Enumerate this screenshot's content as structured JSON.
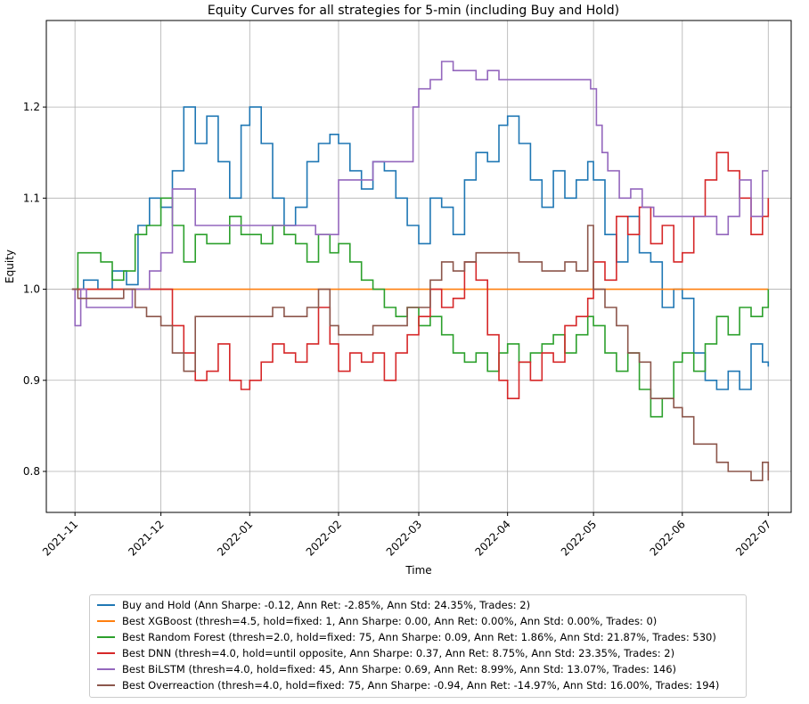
{
  "chart_data": {
    "type": "line",
    "title": "Equity Curves for all strategies for 5-min (including Buy and Hold)",
    "xlabel": "Time",
    "ylabel": "Equity",
    "ylim": [
      0.755,
      1.295
    ],
    "xlim_days": [
      -10,
      250
    ],
    "grid": true,
    "x_ticks": [
      {
        "label": "2021-11",
        "day": 0
      },
      {
        "label": "2021-12",
        "day": 30
      },
      {
        "label": "2022-01",
        "day": 61
      },
      {
        "label": "2022-02",
        "day": 92
      },
      {
        "label": "2022-03",
        "day": 120
      },
      {
        "label": "2022-04",
        "day": 151
      },
      {
        "label": "2022-05",
        "day": 181
      },
      {
        "label": "2022-06",
        "day": 212
      },
      {
        "label": "2022-07",
        "day": 242
      }
    ],
    "y_ticks": [
      0.8,
      0.9,
      1.0,
      1.1,
      1.2
    ],
    "series": [
      {
        "name": "Buy and Hold (Ann Sharpe: -0.12, Ann Ret: -2.85%, Ann Std: 24.35%, Trades: 2)",
        "color": "#1f77b4",
        "x": [
          -1,
          3,
          8,
          13,
          18,
          22,
          26,
          30,
          34,
          38,
          42,
          46,
          50,
          54,
          58,
          61,
          65,
          69,
          73,
          77,
          81,
          85,
          89,
          92,
          96,
          100,
          104,
          108,
          112,
          116,
          120,
          124,
          128,
          132,
          136,
          140,
          144,
          148,
          151,
          155,
          159,
          163,
          167,
          171,
          175,
          179,
          181,
          185,
          189,
          193,
          197,
          201,
          205,
          209,
          212,
          216,
          220,
          224,
          228,
          232,
          236,
          240,
          242
        ],
        "values": [
          1.0,
          1.01,
          1.0,
          1.02,
          1.005,
          1.07,
          1.1,
          1.09,
          1.13,
          1.2,
          1.16,
          1.19,
          1.14,
          1.1,
          1.18,
          1.2,
          1.16,
          1.1,
          1.07,
          1.09,
          1.14,
          1.16,
          1.17,
          1.16,
          1.13,
          1.11,
          1.14,
          1.13,
          1.1,
          1.07,
          1.05,
          1.1,
          1.09,
          1.06,
          1.12,
          1.15,
          1.14,
          1.18,
          1.19,
          1.16,
          1.12,
          1.09,
          1.13,
          1.1,
          1.12,
          1.14,
          1.12,
          1.06,
          1.03,
          1.08,
          1.04,
          1.03,
          0.98,
          1.0,
          0.99,
          0.93,
          0.9,
          0.89,
          0.91,
          0.89,
          0.94,
          0.92,
          0.915
        ]
      },
      {
        "name": "Best XGBoost (thresh=4.5, hold=fixed: 1, Ann Sharpe: 0.00, Ann Ret: 0.00%, Ann Std: 0.00%, Trades: 0)",
        "color": "#ff7f0e",
        "x": [
          -1,
          242
        ],
        "values": [
          1.0,
          1.0
        ]
      },
      {
        "name": "Best Random Forest (thresh=2.0, hold=fixed: 75, Ann Sharpe: 0.09, Ann Ret: 1.86%, Ann Std: 21.87%, Trades: 530)",
        "color": "#2ca02c",
        "x": [
          -1,
          1,
          5,
          9,
          13,
          17,
          21,
          25,
          30,
          34,
          38,
          42,
          46,
          50,
          54,
          58,
          61,
          65,
          69,
          73,
          77,
          81,
          85,
          89,
          92,
          96,
          100,
          104,
          108,
          112,
          116,
          120,
          124,
          128,
          132,
          136,
          140,
          144,
          148,
          151,
          155,
          159,
          163,
          167,
          171,
          175,
          179,
          181,
          185,
          189,
          193,
          197,
          201,
          205,
          209,
          212,
          216,
          220,
          224,
          228,
          232,
          236,
          240,
          242
        ],
        "values": [
          1.0,
          1.04,
          1.04,
          1.03,
          1.01,
          1.02,
          1.06,
          1.07,
          1.1,
          1.07,
          1.03,
          1.06,
          1.05,
          1.05,
          1.08,
          1.06,
          1.06,
          1.05,
          1.07,
          1.06,
          1.05,
          1.03,
          1.06,
          1.04,
          1.05,
          1.03,
          1.01,
          1.0,
          0.98,
          0.97,
          0.98,
          0.96,
          0.97,
          0.95,
          0.93,
          0.92,
          0.93,
          0.91,
          0.93,
          0.94,
          0.92,
          0.93,
          0.94,
          0.95,
          0.93,
          0.95,
          0.97,
          0.96,
          0.93,
          0.91,
          0.93,
          0.89,
          0.86,
          0.88,
          0.92,
          0.93,
          0.91,
          0.94,
          0.97,
          0.95,
          0.98,
          0.97,
          0.98,
          1.0
        ]
      },
      {
        "name": "Best DNN (thresh=4.0, hold=until opposite, Ann Sharpe: 0.37, Ann Ret: 8.75%, Ann Std: 23.35%, Trades: 2)",
        "color": "#d62728",
        "x": [
          -1,
          1,
          5,
          9,
          13,
          17,
          21,
          25,
          30,
          34,
          38,
          42,
          46,
          50,
          54,
          58,
          61,
          65,
          69,
          73,
          77,
          81,
          85,
          89,
          92,
          96,
          100,
          104,
          108,
          112,
          116,
          120,
          124,
          128,
          132,
          136,
          140,
          144,
          148,
          151,
          155,
          159,
          163,
          167,
          171,
          175,
          179,
          181,
          185,
          189,
          193,
          197,
          201,
          205,
          209,
          212,
          216,
          220,
          224,
          228,
          232,
          236,
          240,
          242
        ],
        "values": [
          1.0,
          1.0,
          1.0,
          1.0,
          1.0,
          1.0,
          1.0,
          1.0,
          1.0,
          0.96,
          0.93,
          0.9,
          0.91,
          0.94,
          0.9,
          0.89,
          0.9,
          0.92,
          0.94,
          0.93,
          0.92,
          0.94,
          0.98,
          0.94,
          0.91,
          0.93,
          0.92,
          0.93,
          0.9,
          0.93,
          0.95,
          0.97,
          1.0,
          0.98,
          0.99,
          1.03,
          1.01,
          0.95,
          0.9,
          0.88,
          0.92,
          0.9,
          0.93,
          0.92,
          0.96,
          0.97,
          0.99,
          1.03,
          1.01,
          1.08,
          1.06,
          1.09,
          1.05,
          1.07,
          1.03,
          1.04,
          1.08,
          1.12,
          1.15,
          1.13,
          1.1,
          1.06,
          1.08,
          1.1
        ]
      },
      {
        "name": "Best BiLSTM (thresh=4.0, hold=fixed: 45, Ann Sharpe: 0.69, Ann Ret: 8.99%, Ann Std: 13.07%, Trades: 146)",
        "color": "#9467bd",
        "x": [
          -1,
          0,
          2,
          4,
          10,
          16,
          20,
          26,
          30,
          34,
          38,
          42,
          48,
          54,
          60,
          66,
          72,
          78,
          84,
          88,
          92,
          96,
          100,
          104,
          108,
          112,
          116,
          118,
          120,
          124,
          128,
          132,
          136,
          140,
          144,
          148,
          152,
          158,
          164,
          170,
          176,
          180,
          182,
          184,
          186,
          190,
          194,
          198,
          202,
          208,
          214,
          220,
          224,
          228,
          232,
          236,
          240,
          242
        ],
        "values": [
          1.0,
          0.96,
          1.0,
          0.98,
          0.98,
          0.98,
          1.0,
          1.02,
          1.04,
          1.11,
          1.11,
          1.07,
          1.07,
          1.07,
          1.07,
          1.07,
          1.07,
          1.07,
          1.06,
          1.06,
          1.12,
          1.12,
          1.12,
          1.14,
          1.14,
          1.14,
          1.14,
          1.2,
          1.22,
          1.23,
          1.25,
          1.24,
          1.24,
          1.23,
          1.24,
          1.23,
          1.23,
          1.23,
          1.23,
          1.23,
          1.23,
          1.22,
          1.18,
          1.15,
          1.13,
          1.1,
          1.11,
          1.09,
          1.08,
          1.08,
          1.08,
          1.08,
          1.06,
          1.08,
          1.12,
          1.08,
          1.13,
          1.13
        ]
      },
      {
        "name": "Best Overreaction (thresh=4.0, hold=fixed: 75, Ann Sharpe: -0.94, Ann Ret: -14.97%, Ann Std: 16.00%, Trades: 194)",
        "color": "#8c564b",
        "x": [
          -1,
          1,
          5,
          9,
          13,
          17,
          21,
          25,
          30,
          34,
          38,
          42,
          46,
          50,
          54,
          58,
          61,
          65,
          69,
          73,
          77,
          81,
          85,
          89,
          92,
          96,
          100,
          104,
          108,
          112,
          116,
          120,
          124,
          128,
          132,
          136,
          140,
          144,
          148,
          151,
          155,
          159,
          163,
          167,
          171,
          175,
          179,
          181,
          185,
          189,
          193,
          197,
          201,
          205,
          209,
          212,
          216,
          220,
          224,
          228,
          232,
          236,
          240,
          242
        ],
        "values": [
          1.0,
          0.99,
          0.99,
          0.99,
          0.99,
          1.0,
          0.98,
          0.97,
          0.96,
          0.93,
          0.91,
          0.97,
          0.97,
          0.97,
          0.97,
          0.97,
          0.97,
          0.97,
          0.98,
          0.97,
          0.97,
          0.98,
          1.0,
          0.96,
          0.95,
          0.95,
          0.95,
          0.96,
          0.96,
          0.96,
          0.98,
          0.98,
          1.01,
          1.03,
          1.02,
          1.03,
          1.04,
          1.04,
          1.04,
          1.04,
          1.03,
          1.03,
          1.02,
          1.02,
          1.03,
          1.02,
          1.07,
          1.0,
          0.98,
          0.96,
          0.93,
          0.92,
          0.88,
          0.88,
          0.87,
          0.86,
          0.83,
          0.83,
          0.81,
          0.8,
          0.8,
          0.79,
          0.81,
          0.79
        ]
      }
    ]
  }
}
